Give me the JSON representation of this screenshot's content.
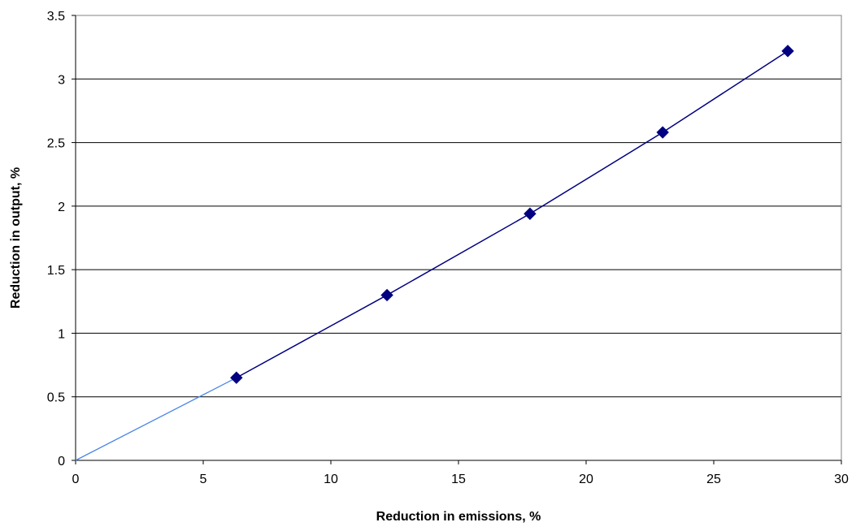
{
  "chart_data": {
    "type": "scatter",
    "title": "",
    "xlabel": "Reduction in emissions, %",
    "ylabel": "Reduction in output, %",
    "xlim": [
      0,
      30
    ],
    "ylim": [
      0,
      3.5
    ],
    "x_ticks": [
      0,
      5,
      10,
      15,
      20,
      25,
      30
    ],
    "y_ticks": [
      0,
      0.5,
      1,
      1.5,
      2,
      2.5,
      3,
      3.5
    ],
    "x_tick_labels": [
      "0",
      "5",
      "10",
      "15",
      "20",
      "25",
      "30"
    ],
    "y_tick_labels": [
      "0",
      "0.5",
      "1",
      "1.5",
      "2",
      "2.5",
      "3",
      "3.5"
    ],
    "horizontal_grid": true,
    "legend": "none",
    "series": [
      {
        "marker": "diamond",
        "line": "solid",
        "color": "#000080",
        "x": [
          6.3,
          12.2,
          17.8,
          23.0,
          27.9
        ],
        "y": [
          0.65,
          1.3,
          1.94,
          2.58,
          3.22
        ]
      }
    ],
    "extrapolation": {
      "color": "#4a86e8",
      "x": [
        0,
        6.3
      ],
      "y": [
        0,
        0.65
      ]
    }
  }
}
